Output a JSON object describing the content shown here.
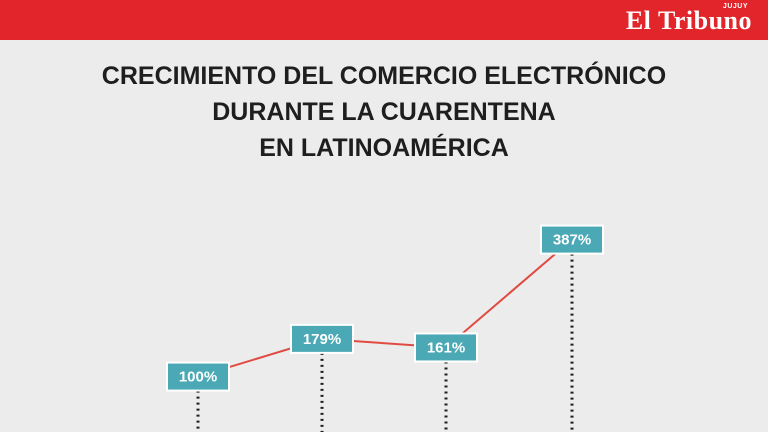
{
  "header": {
    "brand": "El Tribuno",
    "brand_sub": "JUJUY",
    "bar_color": "#e1252a"
  },
  "title_lines": [
    "CRECIMIENTO DEL COMERCIO ELECTRÓNICO",
    "DURANTE LA CUARENTENA",
    "EN LATINOAMÉRICA"
  ],
  "chart_data": {
    "type": "line",
    "title": "CRECIMIENTO DEL COMERCIO ELECTRÓNICO DURANTE LA CUARENTENA EN LATINOAMÉRICA",
    "categories": [
      "",
      "",
      "",
      ""
    ],
    "values": [
      100,
      179,
      161,
      387
    ],
    "labels": [
      "100%",
      "179%",
      "161%",
      "387%"
    ],
    "unit": "%",
    "line_color": "#e04a40",
    "label_color": "#4aa9b5",
    "grid": false
  }
}
